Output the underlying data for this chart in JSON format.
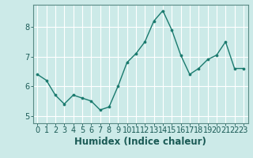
{
  "x": [
    0,
    1,
    2,
    3,
    4,
    5,
    6,
    7,
    8,
    9,
    10,
    11,
    12,
    13,
    14,
    15,
    16,
    17,
    18,
    19,
    20,
    21,
    22,
    23
  ],
  "y": [
    6.4,
    6.2,
    5.7,
    5.4,
    5.7,
    5.6,
    5.5,
    5.2,
    5.3,
    6.0,
    6.8,
    7.1,
    7.5,
    8.2,
    8.55,
    7.9,
    7.05,
    6.4,
    6.6,
    6.9,
    7.05,
    7.5,
    6.6,
    6.6
  ],
  "line_color": "#1a7a6e",
  "marker": "o",
  "marker_size": 2.2,
  "xlabel": "Humidex (Indice chaleur)",
  "xlim": [
    -0.5,
    23.5
  ],
  "ylim": [
    4.75,
    8.75
  ],
  "yticks": [
    5,
    6,
    7,
    8
  ],
  "xticks": [
    0,
    1,
    2,
    3,
    4,
    5,
    6,
    7,
    8,
    9,
    10,
    11,
    12,
    13,
    14,
    15,
    16,
    17,
    18,
    19,
    20,
    21,
    22,
    23
  ],
  "bg_color": "#cceae8",
  "grid_color": "#ffffff",
  "spine_color": "#5a8a85",
  "tick_label_fontsize": 7,
  "xlabel_fontsize": 8.5
}
